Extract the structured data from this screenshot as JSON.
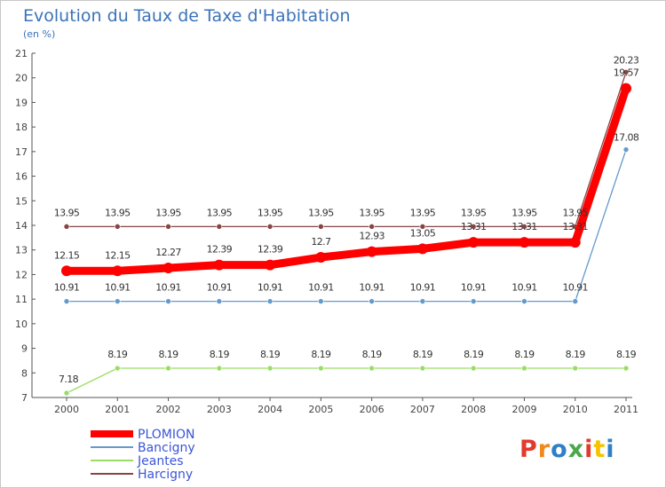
{
  "chart_data": {
    "type": "line",
    "title": "Evolution du Taux de Taxe d'Habitation",
    "subtitle": "(en %)",
    "xlabel": "",
    "ylabel": "",
    "ylim": [
      7,
      21
    ],
    "yticks": [
      "7",
      "8",
      "9",
      "10",
      "11",
      "12",
      "13",
      "14",
      "15",
      "16",
      "17",
      "18",
      "19",
      "20",
      "21"
    ],
    "categories": [
      "2000",
      "2001",
      "2002",
      "2003",
      "2004",
      "2005",
      "2006",
      "2007",
      "2008",
      "2009",
      "2010",
      "2011"
    ],
    "series": [
      {
        "name": "PLOMION",
        "color": "#ff0000",
        "values": [
          12.15,
          12.15,
          12.27,
          12.39,
          12.39,
          12.7,
          12.93,
          13.05,
          13.31,
          13.31,
          13.31,
          19.57
        ],
        "labels": [
          "12.15",
          "12.15",
          "12.27",
          "12.39",
          "12.39",
          "12.7",
          "12.93",
          "13.05",
          "13.31",
          "13.31",
          "13.31",
          "19.57"
        ]
      },
      {
        "name": "Bancigny",
        "color": "#6699cc",
        "values": [
          10.91,
          10.91,
          10.91,
          10.91,
          10.91,
          10.91,
          10.91,
          10.91,
          10.91,
          10.91,
          10.91,
          17.08
        ],
        "labels": [
          "10.91",
          "10.91",
          "10.91",
          "10.91",
          "10.91",
          "10.91",
          "10.91",
          "10.91",
          "10.91",
          "10.91",
          "10.91",
          "17.08"
        ]
      },
      {
        "name": "Jeantes",
        "color": "#99dd66",
        "values": [
          7.18,
          8.19,
          8.19,
          8.19,
          8.19,
          8.19,
          8.19,
          8.19,
          8.19,
          8.19,
          8.19,
          8.19
        ],
        "labels": [
          "7.18",
          "8.19",
          "8.19",
          "8.19",
          "8.19",
          "8.19",
          "8.19",
          "8.19",
          "8.19",
          "8.19",
          "8.19",
          "8.19"
        ]
      },
      {
        "name": "Harcigny",
        "color": "#884444",
        "values": [
          13.95,
          13.95,
          13.95,
          13.95,
          13.95,
          13.95,
          13.95,
          13.95,
          13.95,
          13.95,
          13.95,
          20.23
        ],
        "labels": [
          "13.95",
          "13.95",
          "13.95",
          "13.95",
          "13.95",
          "13.95",
          "13.95",
          "13.95",
          "13.95",
          "13.95",
          "13.95",
          "20.23"
        ]
      }
    ],
    "legend_position": "bottom-left",
    "grid": false
  },
  "brand": {
    "logo_text": "Proxiti",
    "colors": [
      "#e33a2c",
      "#f08a1c",
      "#2f7fc8",
      "#4aa848",
      "#e33a2c",
      "#f5c400",
      "#2f7fc8"
    ]
  }
}
